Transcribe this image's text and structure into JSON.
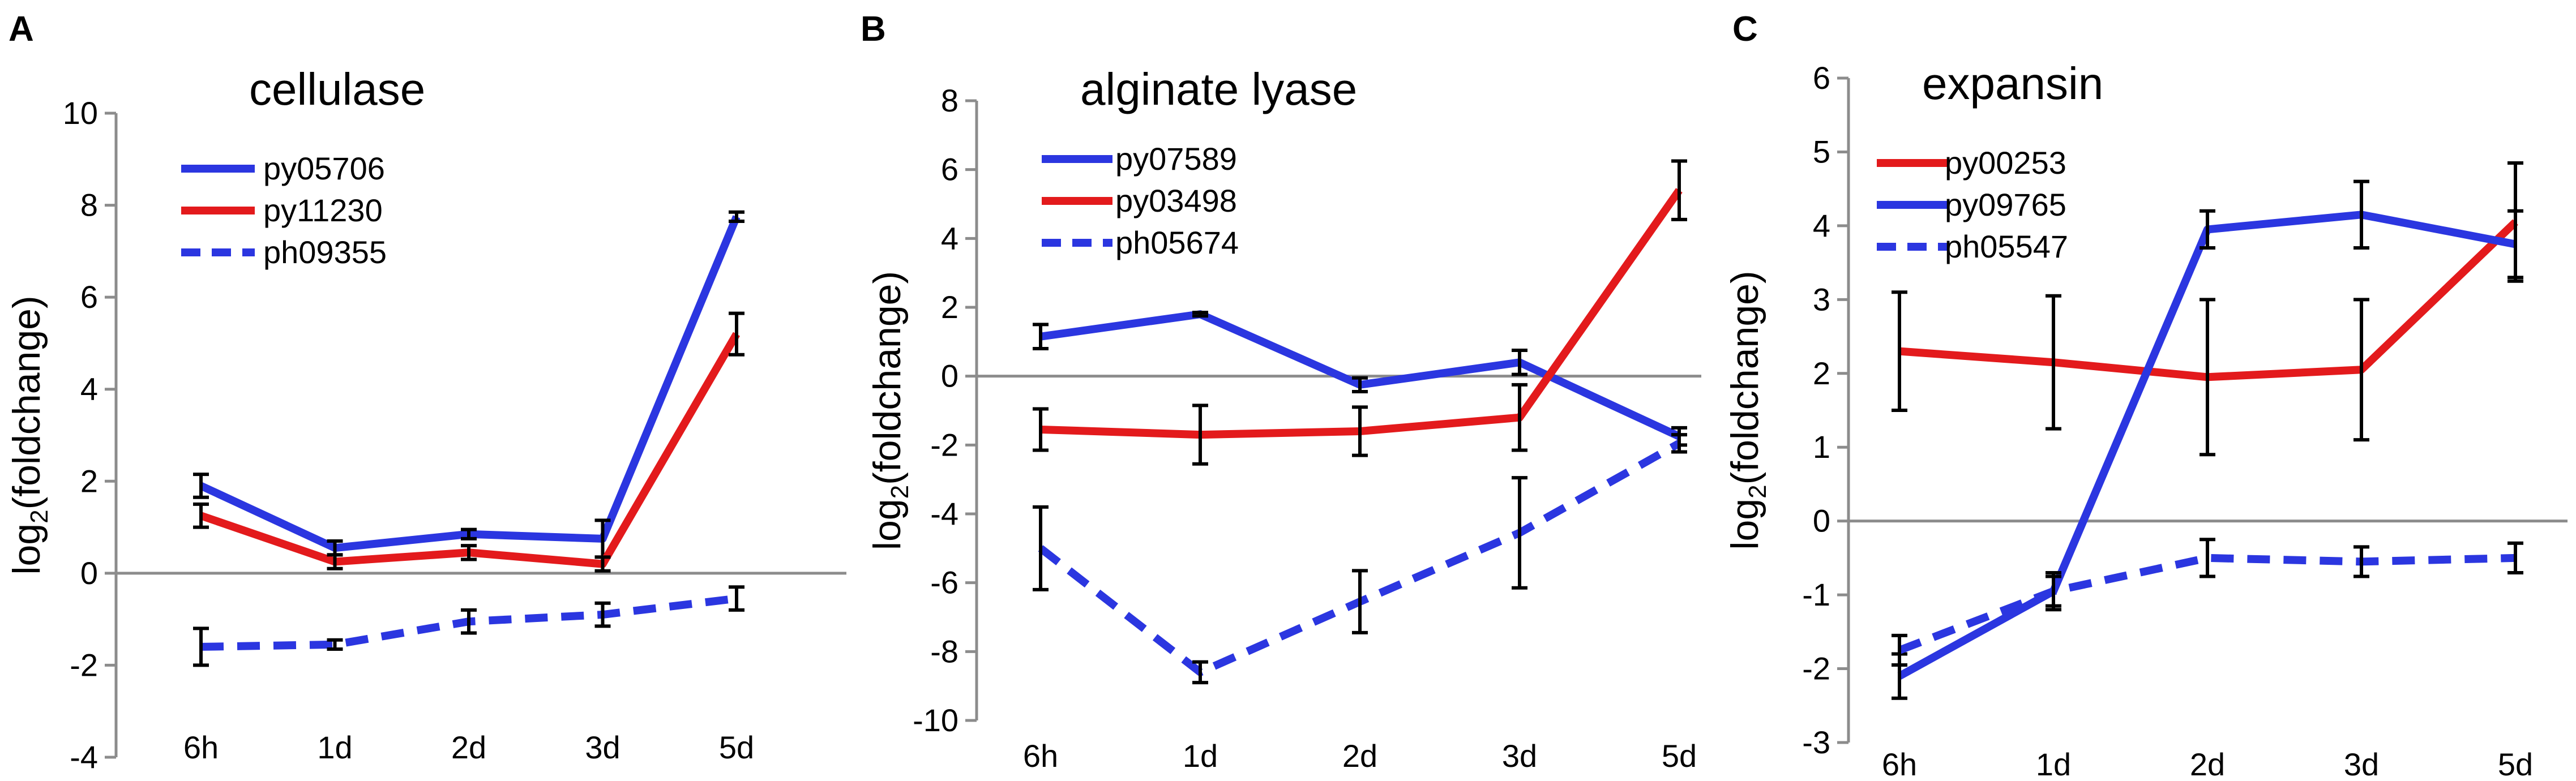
{
  "chart_data": [
    {
      "type": "line",
      "panel_label": "A",
      "title": "cellulase",
      "ylabel_main": "log",
      "ylabel_sub": "2",
      "ylabel_rest": "(foldchange)",
      "ylim": [
        -4,
        10
      ],
      "yticks": [
        -4,
        -2,
        0,
        2,
        4,
        6,
        8,
        10
      ],
      "ytick_labels": [
        "-4",
        "-2",
        "0",
        "2",
        "4",
        "6",
        "8",
        "10"
      ],
      "categories": [
        "6h",
        "1d",
        "2d",
        "3d",
        "5d"
      ],
      "legend_position": "top-left",
      "series": [
        {
          "name": "py05706",
          "color": "#2b36e0",
          "dashed": false,
          "values": [
            1.9,
            0.55,
            0.85,
            0.75,
            7.75
          ],
          "errors": [
            0.25,
            0.15,
            0.1,
            0.4,
            0.1
          ]
        },
        {
          "name": "py11230",
          "color": "#e31a1c",
          "dashed": false,
          "values": [
            1.25,
            0.25,
            0.45,
            0.2,
            5.2
          ],
          "errors": [
            0.25,
            0.15,
            0.15,
            0.15,
            0.45
          ]
        },
        {
          "name": "ph09355",
          "color": "#2b36e0",
          "dashed": true,
          "values": [
            -1.6,
            -1.55,
            -1.05,
            -0.9,
            -0.55
          ],
          "errors": [
            0.4,
            0.1,
            0.25,
            0.25,
            0.25
          ]
        }
      ]
    },
    {
      "type": "line",
      "panel_label": "B",
      "title": "alginate lyase",
      "ylabel_main": "log",
      "ylabel_sub": "2",
      "ylabel_rest": "(foldchange)",
      "ylim": [
        -10,
        8
      ],
      "yticks": [
        -10,
        -8,
        -6,
        -4,
        -2,
        0,
        2,
        4,
        6,
        8
      ],
      "ytick_labels": [
        "-10",
        "-8",
        "-6",
        "-4",
        "-2",
        "0",
        "2",
        "4",
        "6",
        "8"
      ],
      "categories": [
        "6h",
        "1d",
        "2d",
        "3d",
        "5d"
      ],
      "legend_position": "top-left",
      "series": [
        {
          "name": "py07589",
          "color": "#2b36e0",
          "dashed": false,
          "values": [
            1.15,
            1.8,
            -0.25,
            0.4,
            -1.75
          ],
          "errors": [
            0.35,
            0.05,
            0.2,
            0.35,
            0.25
          ]
        },
        {
          "name": "py03498",
          "color": "#e31a1c",
          "dashed": false,
          "values": [
            -1.55,
            -1.7,
            -1.6,
            -1.2,
            5.4
          ],
          "errors": [
            0.6,
            0.85,
            0.7,
            0.95,
            0.85
          ]
        },
        {
          "name": "ph05674",
          "color": "#2b36e0",
          "dashed": true,
          "values": [
            -5.0,
            -8.6,
            -6.55,
            -4.55,
            -1.95
          ],
          "errors": [
            1.2,
            0.3,
            0.9,
            1.6,
            0.25
          ]
        }
      ]
    },
    {
      "type": "line",
      "panel_label": "C",
      "title": "expansin",
      "ylabel_main": "log",
      "ylabel_sub": "2",
      "ylabel_rest": "(foldchange)",
      "ylim": [
        -3,
        6
      ],
      "yticks": [
        -3,
        -2,
        -1,
        0,
        1,
        2,
        3,
        4,
        5,
        6
      ],
      "ytick_labels": [
        "-3",
        "-2",
        "-1",
        "0",
        "1",
        "2",
        "3",
        "4",
        "5",
        "6"
      ],
      "categories": [
        "6h",
        "1d",
        "2d",
        "3d",
        "5d"
      ],
      "legend_position": "top-left",
      "series": [
        {
          "name": "py00253",
          "color": "#e31a1c",
          "dashed": false,
          "values": [
            2.3,
            2.15,
            1.95,
            2.05,
            4.05
          ],
          "errors": [
            0.8,
            0.9,
            1.05,
            0.95,
            0.8
          ]
        },
        {
          "name": "py09765",
          "color": "#2b36e0",
          "dashed": false,
          "values": [
            -2.1,
            -0.95,
            3.95,
            4.15,
            3.75
          ],
          "errors": [
            0.3,
            0.25,
            0.25,
            0.45,
            0.45
          ]
        },
        {
          "name": "ph05547",
          "color": "#2b36e0",
          "dashed": true,
          "values": [
            -1.75,
            -0.95,
            -0.5,
            -0.55,
            -0.5
          ],
          "errors": [
            0.2,
            0.2,
            0.25,
            0.2,
            0.2
          ]
        }
      ]
    }
  ]
}
